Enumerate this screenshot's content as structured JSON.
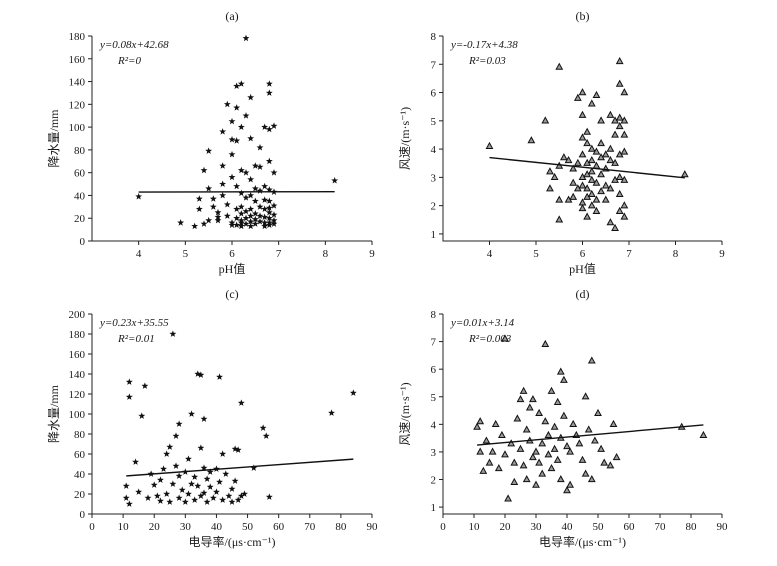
{
  "chart_data": [
    {
      "type": "scatter",
      "panel_label": "(a)",
      "marker": "star",
      "xlabel": "pH值",
      "ylabel": "降水量/mm",
      "xlim": [
        3,
        9
      ],
      "ylim": [
        0,
        180
      ],
      "xticks": [
        4,
        5,
        6,
        7,
        8,
        9
      ],
      "yticks": [
        0,
        20,
        40,
        60,
        80,
        100,
        120,
        140,
        160,
        180
      ],
      "equation": "y=0.08x+42.68",
      "r2": "R²=0",
      "fit": {
        "slope": 0.08,
        "intercept": 42.68,
        "x_range": [
          4.0,
          8.2
        ]
      },
      "points": [
        [
          4.0,
          39
        ],
        [
          4.9,
          16
        ],
        [
          5.2,
          13
        ],
        [
          5.3,
          37
        ],
        [
          5.3,
          28
        ],
        [
          5.4,
          15
        ],
        [
          5.4,
          62
        ],
        [
          5.5,
          79
        ],
        [
          5.5,
          46
        ],
        [
          5.5,
          18
        ],
        [
          5.6,
          37
        ],
        [
          5.6,
          30
        ],
        [
          5.7,
          21
        ],
        [
          5.7,
          25
        ],
        [
          5.7,
          18
        ],
        [
          5.8,
          96
        ],
        [
          5.8,
          66
        ],
        [
          5.8,
          50
        ],
        [
          5.8,
          40
        ],
        [
          5.9,
          120
        ],
        [
          5.9,
          32
        ],
        [
          5.9,
          22
        ],
        [
          6.0,
          105
        ],
        [
          6.0,
          89
        ],
        [
          6.0,
          76
        ],
        [
          6.0,
          56
        ],
        [
          6.0,
          16
        ],
        [
          6.0,
          14
        ],
        [
          6.1,
          136
        ],
        [
          6.1,
          117
        ],
        [
          6.1,
          88
        ],
        [
          6.1,
          48
        ],
        [
          6.1,
          28
        ],
        [
          6.1,
          20
        ],
        [
          6.1,
          14
        ],
        [
          6.2,
          138
        ],
        [
          6.2,
          100
        ],
        [
          6.2,
          62
        ],
        [
          6.2,
          42
        ],
        [
          6.2,
          30
        ],
        [
          6.2,
          24
        ],
        [
          6.2,
          18
        ],
        [
          6.2,
          16
        ],
        [
          6.2,
          13
        ],
        [
          6.3,
          178
        ],
        [
          6.3,
          110
        ],
        [
          6.3,
          60
        ],
        [
          6.3,
          38
        ],
        [
          6.3,
          26
        ],
        [
          6.3,
          20
        ],
        [
          6.3,
          15
        ],
        [
          6.4,
          126
        ],
        [
          6.4,
          90
        ],
        [
          6.4,
          54
        ],
        [
          6.4,
          40
        ],
        [
          6.4,
          28
        ],
        [
          6.4,
          22
        ],
        [
          6.4,
          17
        ],
        [
          6.4,
          13
        ],
        [
          6.5,
          66
        ],
        [
          6.5,
          46
        ],
        [
          6.5,
          35
        ],
        [
          6.5,
          24
        ],
        [
          6.5,
          19
        ],
        [
          6.5,
          15
        ],
        [
          6.6,
          82
        ],
        [
          6.6,
          65
        ],
        [
          6.6,
          44
        ],
        [
          6.6,
          30
        ],
        [
          6.6,
          22
        ],
        [
          6.6,
          17
        ],
        [
          6.7,
          100
        ],
        [
          6.7,
          48
        ],
        [
          6.7,
          36
        ],
        [
          6.7,
          28
        ],
        [
          6.7,
          21
        ],
        [
          6.7,
          16
        ],
        [
          6.7,
          13
        ],
        [
          6.8,
          138
        ],
        [
          6.8,
          130
        ],
        [
          6.8,
          98
        ],
        [
          6.8,
          70
        ],
        [
          6.8,
          45
        ],
        [
          6.8,
          35
        ],
        [
          6.8,
          29
        ],
        [
          6.8,
          25
        ],
        [
          6.8,
          20
        ],
        [
          6.8,
          16
        ],
        [
          6.8,
          14
        ],
        [
          6.9,
          101
        ],
        [
          6.9,
          60
        ],
        [
          6.9,
          43
        ],
        [
          6.9,
          31
        ],
        [
          6.9,
          23
        ],
        [
          6.9,
          18
        ],
        [
          6.9,
          15
        ],
        [
          8.2,
          53
        ]
      ]
    },
    {
      "type": "scatter",
      "panel_label": "(b)",
      "marker": "triangle",
      "xlabel": "pH值",
      "ylabel": "风速/(m·s⁻¹)",
      "xlim": [
        3,
        9
      ],
      "ylim": [
        0.75,
        8
      ],
      "xticks": [
        4,
        5,
        6,
        7,
        8,
        9
      ],
      "yticks": [
        1,
        2,
        3,
        4,
        5,
        6,
        7,
        8
      ],
      "equation": "y=-0.17x+4.38",
      "r2": "R²=0.03",
      "fit": {
        "slope": -0.17,
        "intercept": 4.38,
        "x_range": [
          4.0,
          8.2
        ]
      },
      "points": [
        [
          4.0,
          4.1
        ],
        [
          4.9,
          4.3
        ],
        [
          5.2,
          5.0
        ],
        [
          5.3,
          3.2
        ],
        [
          5.3,
          2.6
        ],
        [
          5.4,
          3.0
        ],
        [
          5.5,
          6.9
        ],
        [
          5.5,
          3.4
        ],
        [
          5.5,
          2.2
        ],
        [
          5.5,
          1.5
        ],
        [
          5.6,
          3.7
        ],
        [
          5.7,
          3.6
        ],
        [
          5.7,
          2.2
        ],
        [
          5.8,
          3.3
        ],
        [
          5.8,
          2.8
        ],
        [
          5.8,
          2.3
        ],
        [
          5.9,
          5.8
        ],
        [
          5.9,
          3.5
        ],
        [
          5.9,
          2.6
        ],
        [
          6.0,
          6.0
        ],
        [
          6.0,
          5.2
        ],
        [
          6.0,
          4.4
        ],
        [
          6.0,
          3.8
        ],
        [
          6.0,
          3.0
        ],
        [
          6.0,
          2.7
        ],
        [
          6.0,
          2.1
        ],
        [
          6.0,
          1.9
        ],
        [
          6.1,
          4.6
        ],
        [
          6.1,
          4.2
        ],
        [
          6.1,
          3.5
        ],
        [
          6.1,
          3.1
        ],
        [
          6.1,
          2.6
        ],
        [
          6.1,
          2.3
        ],
        [
          6.1,
          1.6
        ],
        [
          6.2,
          5.6
        ],
        [
          6.2,
          4.0
        ],
        [
          6.2,
          3.6
        ],
        [
          6.2,
          3.2
        ],
        [
          6.2,
          2.9
        ],
        [
          6.2,
          2.4
        ],
        [
          6.2,
          2.0
        ],
        [
          6.3,
          5.9
        ],
        [
          6.3,
          3.9
        ],
        [
          6.3,
          3.4
        ],
        [
          6.3,
          2.8
        ],
        [
          6.3,
          2.2
        ],
        [
          6.3,
          1.8
        ],
        [
          6.4,
          5.0
        ],
        [
          6.4,
          4.2
        ],
        [
          6.4,
          3.7
        ],
        [
          6.4,
          3.1
        ],
        [
          6.4,
          2.5
        ],
        [
          6.5,
          3.8
        ],
        [
          6.5,
          3.3
        ],
        [
          6.5,
          2.7
        ],
        [
          6.5,
          2.2
        ],
        [
          6.6,
          5.2
        ],
        [
          6.6,
          4.0
        ],
        [
          6.6,
          3.6
        ],
        [
          6.6,
          2.6
        ],
        [
          6.6,
          1.4
        ],
        [
          6.7,
          5.0
        ],
        [
          6.7,
          4.5
        ],
        [
          6.7,
          3.5
        ],
        [
          6.7,
          2.9
        ],
        [
          6.7,
          1.2
        ],
        [
          6.8,
          7.1
        ],
        [
          6.8,
          6.3
        ],
        [
          6.8,
          5.1
        ],
        [
          6.8,
          4.8
        ],
        [
          6.8,
          3.8
        ],
        [
          6.8,
          3.0
        ],
        [
          6.8,
          2.4
        ],
        [
          6.8,
          1.8
        ],
        [
          6.9,
          6.0
        ],
        [
          6.9,
          5.0
        ],
        [
          6.9,
          4.5
        ],
        [
          6.9,
          3.9
        ],
        [
          6.9,
          2.9
        ],
        [
          6.9,
          2.0
        ],
        [
          6.9,
          1.6
        ],
        [
          8.2,
          3.1
        ]
      ]
    },
    {
      "type": "scatter",
      "panel_label": "(c)",
      "marker": "star",
      "xlabel": "电导率/(μs·cm⁻¹)",
      "ylabel": "降水量/mm",
      "xlim": [
        0,
        90
      ],
      "ylim": [
        0,
        200
      ],
      "xticks": [
        0,
        10,
        20,
        30,
        40,
        50,
        60,
        70,
        80,
        90
      ],
      "yticks": [
        0,
        20,
        40,
        60,
        80,
        100,
        120,
        140,
        160,
        180,
        200
      ],
      "equation": "y=0.23x+35.55",
      "r2": "R²=0.01",
      "fit": {
        "slope": 0.23,
        "intercept": 35.55,
        "x_range": [
          11,
          84
        ]
      },
      "points": [
        [
          11,
          28
        ],
        [
          11,
          16
        ],
        [
          12,
          132
        ],
        [
          12,
          117
        ],
        [
          12,
          10
        ],
        [
          14,
          52
        ],
        [
          15,
          22
        ],
        [
          16,
          98
        ],
        [
          17,
          128
        ],
        [
          18,
          16
        ],
        [
          19,
          40
        ],
        [
          20,
          29
        ],
        [
          21,
          18
        ],
        [
          22,
          13
        ],
        [
          22,
          34
        ],
        [
          23,
          45
        ],
        [
          24,
          60
        ],
        [
          24,
          20
        ],
        [
          25,
          67
        ],
        [
          25,
          12
        ],
        [
          26,
          180
        ],
        [
          26,
          30
        ],
        [
          27,
          78
        ],
        [
          27,
          48
        ],
        [
          28,
          90
        ],
        [
          28,
          38
        ],
        [
          28,
          16
        ],
        [
          29,
          24
        ],
        [
          30,
          12
        ],
        [
          30,
          42
        ],
        [
          31,
          55
        ],
        [
          31,
          20
        ],
        [
          32,
          30
        ],
        [
          32,
          100
        ],
        [
          33,
          14
        ],
        [
          33,
          37
        ],
        [
          34,
          140
        ],
        [
          34,
          28
        ],
        [
          35,
          66
        ],
        [
          35,
          18
        ],
        [
          35,
          139
        ],
        [
          36,
          95
        ],
        [
          36,
          46
        ],
        [
          36,
          21
        ],
        [
          37,
          35
        ],
        [
          37,
          12
        ],
        [
          38,
          27
        ],
        [
          38,
          42
        ],
        [
          39,
          16
        ],
        [
          40,
          45
        ],
        [
          40,
          22
        ],
        [
          41,
          137
        ],
        [
          41,
          32
        ],
        [
          42,
          14
        ],
        [
          42,
          60
        ],
        [
          43,
          40
        ],
        [
          44,
          18
        ],
        [
          45,
          25
        ],
        [
          45,
          12
        ],
        [
          46,
          65
        ],
        [
          46,
          33
        ],
        [
          47,
          14
        ],
        [
          47,
          64
        ],
        [
          48,
          111
        ],
        [
          48,
          18
        ],
        [
          49,
          20
        ],
        [
          52,
          46
        ],
        [
          55,
          86
        ],
        [
          56,
          78
        ],
        [
          57,
          17
        ],
        [
          77,
          101
        ],
        [
          84,
          121
        ]
      ]
    },
    {
      "type": "scatter",
      "panel_label": "(d)",
      "marker": "triangle",
      "xlabel": "电导率/(μs·cm⁻¹)",
      "ylabel": "风速/(m·s⁻¹)",
      "xlim": [
        0,
        90
      ],
      "ylim": [
        0.75,
        8
      ],
      "xticks": [
        0,
        10,
        20,
        30,
        40,
        50,
        60,
        70,
        80,
        90
      ],
      "yticks": [
        1,
        2,
        3,
        4,
        5,
        6,
        7,
        8
      ],
      "equation": "y=0.01x+3.14",
      "r2": "R²=0.003",
      "fit": {
        "slope": 0.01,
        "intercept": 3.14,
        "x_range": [
          11,
          84
        ]
      },
      "points": [
        [
          11,
          3.9
        ],
        [
          12,
          4.1
        ],
        [
          12,
          3.0
        ],
        [
          13,
          2.3
        ],
        [
          14,
          3.4
        ],
        [
          15,
          2.6
        ],
        [
          16,
          3.0
        ],
        [
          17,
          4.0
        ],
        [
          18,
          2.4
        ],
        [
          19,
          3.6
        ],
        [
          20,
          7.1
        ],
        [
          20,
          2.9
        ],
        [
          21,
          1.3
        ],
        [
          22,
          3.3
        ],
        [
          23,
          2.6
        ],
        [
          23,
          1.9
        ],
        [
          24,
          4.2
        ],
        [
          25,
          4.9
        ],
        [
          25,
          3.1
        ],
        [
          26,
          5.2
        ],
        [
          26,
          2.5
        ],
        [
          27,
          3.8
        ],
        [
          27,
          2.0
        ],
        [
          28,
          4.6
        ],
        [
          28,
          3.4
        ],
        [
          29,
          2.8
        ],
        [
          29,
          4.9
        ],
        [
          30,
          3.0
        ],
        [
          30,
          1.8
        ],
        [
          31,
          4.4
        ],
        [
          31,
          2.6
        ],
        [
          32,
          3.3
        ],
        [
          32,
          2.2
        ],
        [
          33,
          6.9
        ],
        [
          33,
          4.1
        ],
        [
          34,
          3.6
        ],
        [
          34,
          2.9
        ],
        [
          35,
          5.2
        ],
        [
          35,
          2.4
        ],
        [
          36,
          3.9
        ],
        [
          36,
          3.1
        ],
        [
          37,
          4.8
        ],
        [
          37,
          2.7
        ],
        [
          38,
          5.9
        ],
        [
          38,
          3.5
        ],
        [
          38,
          2.0
        ],
        [
          39,
          5.6
        ],
        [
          39,
          4.3
        ],
        [
          40,
          3.2
        ],
        [
          40,
          1.6
        ],
        [
          41,
          3.0
        ],
        [
          41,
          1.8
        ],
        [
          42,
          4.0
        ],
        [
          43,
          3.6
        ],
        [
          44,
          3.3
        ],
        [
          45,
          2.7
        ],
        [
          46,
          5.0
        ],
        [
          46,
          2.2
        ],
        [
          47,
          3.8
        ],
        [
          48,
          6.3
        ],
        [
          48,
          2.0
        ],
        [
          49,
          3.4
        ],
        [
          50,
          4.4
        ],
        [
          51,
          3.1
        ],
        [
          52,
          2.6
        ],
        [
          54,
          2.5
        ],
        [
          55,
          4.0
        ],
        [
          56,
          2.8
        ],
        [
          77,
          3.9
        ],
        [
          84,
          3.6
        ]
      ]
    }
  ]
}
